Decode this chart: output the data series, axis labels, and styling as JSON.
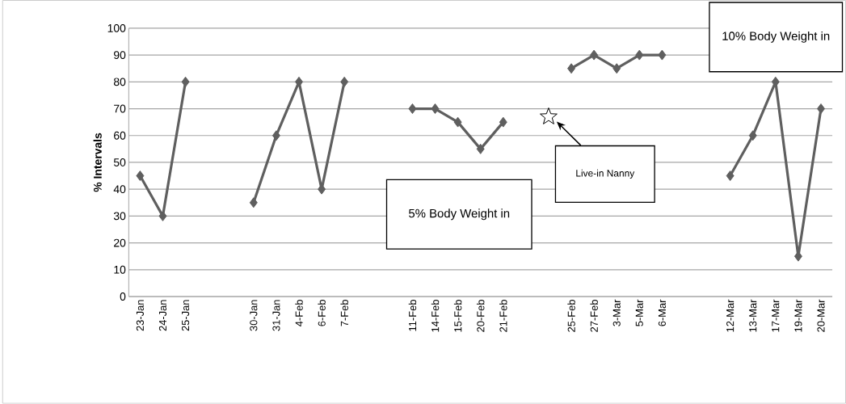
{
  "chart_data": {
    "type": "line",
    "ylabel": "% Intervals",
    "categories": [
      "23-Jan",
      "24-Jan",
      "25-Jan",
      null,
      null,
      "30-Jan",
      "31-Jan",
      "4-Feb",
      "6-Feb",
      "7-Feb",
      null,
      null,
      "11-Feb",
      "14-Feb",
      "15-Feb",
      "20-Feb",
      "21-Feb",
      null,
      null,
      "25-Feb",
      "27-Feb",
      "3-Mar",
      "5-Mar",
      "6-Mar",
      null,
      null,
      "12-Mar",
      "13-Mar",
      "17-Mar",
      "19-Mar",
      "20-Mar"
    ],
    "series": [
      {
        "color": "#5f5f5f",
        "marker": "diamond",
        "values": [
          45,
          30,
          80,
          null,
          null,
          35,
          60,
          80,
          40,
          80,
          null,
          null,
          70,
          70,
          65,
          55,
          65,
          null,
          null,
          85,
          90,
          85,
          90,
          90,
          null,
          null,
          45,
          60,
          80,
          15,
          70
        ]
      },
      {
        "type": "scatter",
        "color": "#000000",
        "marker": "star",
        "values": [
          null,
          null,
          null,
          null,
          null,
          null,
          null,
          null,
          null,
          null,
          null,
          null,
          null,
          null,
          null,
          null,
          null,
          null,
          67,
          null,
          null,
          null,
          null,
          null,
          null,
          null,
          null,
          null,
          null,
          null,
          null
        ]
      }
    ],
    "annotations": [
      "5% Body Weight in",
      "Live-in Nanny",
      "10% Body Weight in"
    ],
    "ylim": [
      0,
      100
    ],
    "yticks": [
      0,
      10,
      20,
      30,
      40,
      50,
      60,
      70,
      80,
      90,
      100
    ],
    "grid": "y"
  }
}
